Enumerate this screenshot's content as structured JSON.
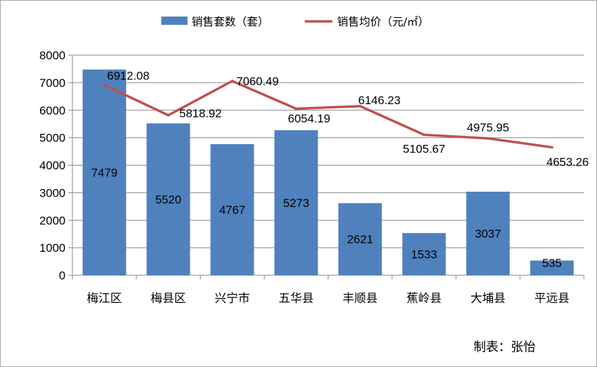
{
  "chart_data": {
    "type": "bar",
    "categories": [
      "梅江区",
      "梅县区",
      "兴宁市",
      "五华县",
      "丰顺县",
      "蕉岭县",
      "大埔县",
      "平远县"
    ],
    "series": [
      {
        "name": "销售套数（套）",
        "type": "bar",
        "color": "#4f81bd",
        "values": [
          7479,
          5520,
          4767,
          5273,
          2621,
          1533,
          3037,
          535
        ]
      },
      {
        "name": "销售均价（元/㎡）",
        "type": "line",
        "color": "#c0504d",
        "values": [
          6912.08,
          5818.92,
          7060.49,
          6054.19,
          6146.23,
          5105.67,
          4975.95,
          4653.26
        ]
      }
    ],
    "ylim": [
      0,
      8000
    ],
    "yticks": [
      0,
      1000,
      2000,
      3000,
      4000,
      5000,
      6000,
      7000,
      8000
    ],
    "grid": true,
    "legend": "top-center"
  },
  "credit": "制表：张怡"
}
